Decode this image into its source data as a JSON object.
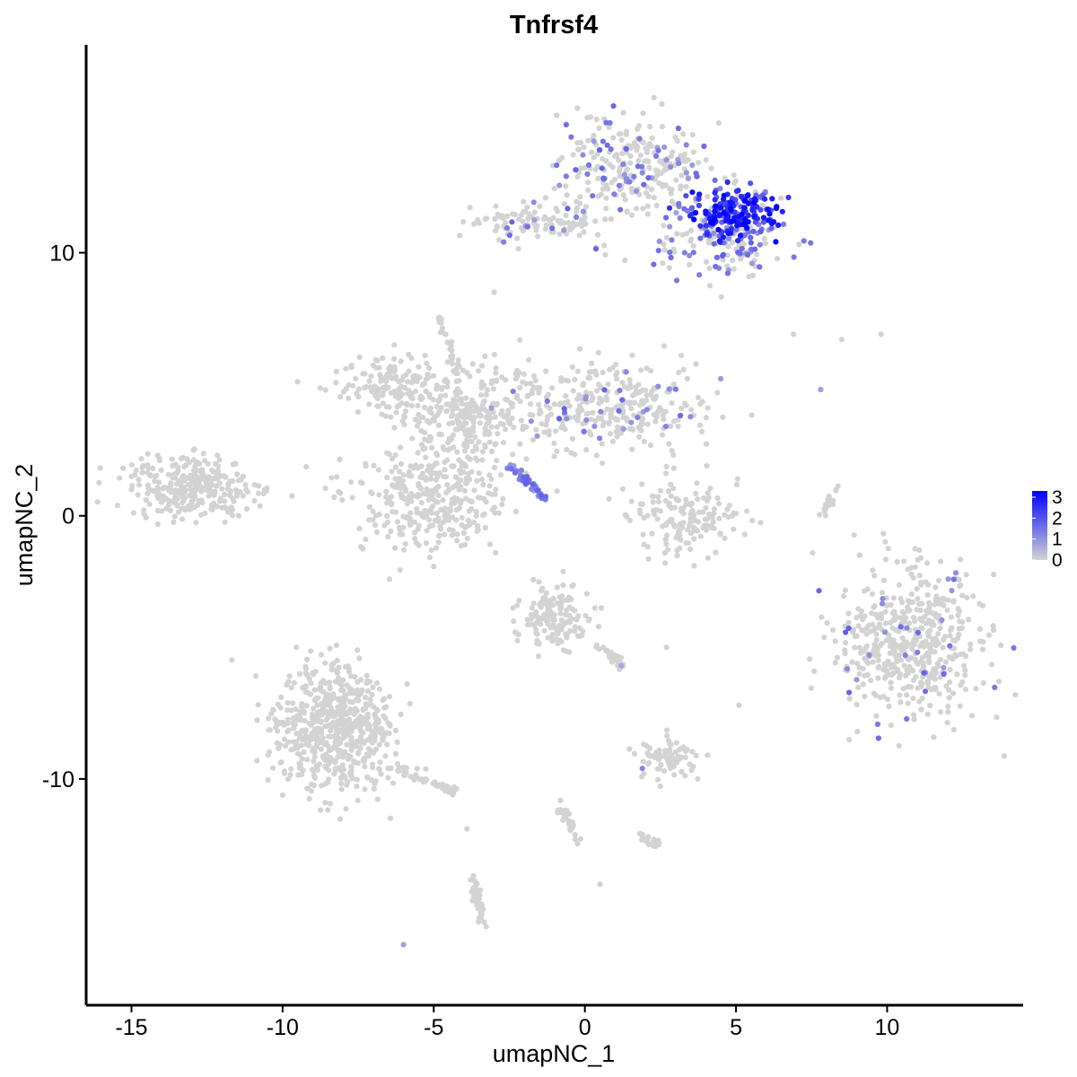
{
  "chart_data": {
    "type": "scatter",
    "title": "Tnfrsf4",
    "xlabel": "umapNC_1",
    "ylabel": "umapNC_2",
    "xlim": [
      -16.5,
      14.5
    ],
    "ylim": [
      -18.6,
      17.9
    ],
    "x_ticks": [
      -15,
      -10,
      -5,
      0,
      5,
      10
    ],
    "x_tick_labels": [
      "-15",
      "-10",
      "-5",
      "0",
      "5",
      "10"
    ],
    "y_ticks": [
      -10,
      0,
      10
    ],
    "y_tick_labels": [
      "-10",
      "0",
      "10"
    ],
    "color_scale": {
      "low": "#d3d3d3",
      "high": "#0000ff",
      "min": 0,
      "max": 3.3,
      "ticks": [
        0,
        1,
        2,
        3
      ],
      "tick_labels": [
        "0",
        "1",
        "2",
        "3"
      ],
      "placement": "right"
    },
    "clusters": [
      {
        "label": "top-upper",
        "cx": 1.6,
        "cy": 13.2,
        "sx": 1.2,
        "sy": 0.9,
        "n": 260,
        "expr": 0.05
      },
      {
        "label": "top-arm",
        "cx": -1.5,
        "cy": 11.2,
        "sx": 1.2,
        "sy": 0.35,
        "n": 110,
        "expr": 0.03
      },
      {
        "label": "top-right",
        "cx": 4.7,
        "cy": 10.6,
        "sx": 1.0,
        "sy": 0.8,
        "n": 180,
        "expr": 0.1
      },
      {
        "label": "top-hot",
        "cx": 4.9,
        "cy": 11.5,
        "sx": 0.7,
        "sy": 0.5,
        "n": 190,
        "expr": 2.4
      },
      {
        "label": "center-left-arm",
        "cx": -6.5,
        "cy": 5.0,
        "sx": 0.8,
        "sy": 0.6,
        "n": 140,
        "expr": 0.0
      },
      {
        "label": "center-hub",
        "cx": -4.0,
        "cy": 3.8,
        "sx": 1.1,
        "sy": 0.9,
        "n": 260,
        "expr": 0.0
      },
      {
        "label": "center-right-arm",
        "cx": 0.8,
        "cy": 4.2,
        "sx": 1.8,
        "sy": 0.9,
        "n": 320,
        "expr": 0.02
      },
      {
        "label": "center-lower",
        "cx": -5.2,
        "cy": 0.6,
        "sx": 1.2,
        "sy": 1.0,
        "n": 320,
        "expr": 0.0
      },
      {
        "label": "far-left",
        "cx": -13.0,
        "cy": 1.1,
        "sx": 1.0,
        "sy": 0.6,
        "n": 300,
        "expr": 0.0
      },
      {
        "label": "arc",
        "cx": 3.3,
        "cy": 0.0,
        "sx": 0.9,
        "sy": 0.7,
        "n": 160,
        "expr": 0.0
      },
      {
        "label": "right",
        "cx": 10.8,
        "cy": -4.9,
        "sx": 1.2,
        "sy": 1.4,
        "n": 520,
        "expr": 0.01
      },
      {
        "label": "mid-lower",
        "cx": -1.0,
        "cy": -3.8,
        "sx": 0.6,
        "sy": 0.6,
        "n": 150,
        "expr": 0.0
      },
      {
        "label": "bottom-left",
        "cx": -8.3,
        "cy": -8.0,
        "sx": 1.0,
        "sy": 1.2,
        "n": 600,
        "expr": 0.0
      },
      {
        "label": "small-bottom",
        "cx": 2.8,
        "cy": -9.2,
        "sx": 0.5,
        "sy": 0.4,
        "n": 80,
        "expr": 0.0
      }
    ],
    "strands": [
      {
        "label": "diag-strand",
        "points": [
          [
            -2.5,
            2.0
          ],
          [
            -1.3,
            0.6
          ]
        ],
        "n": 40,
        "expr": 1.3
      },
      {
        "label": "stem",
        "points": [
          [
            -4.8,
            7.5
          ],
          [
            -4.2,
            5.3
          ]
        ],
        "n": 30,
        "expr": 0.0
      },
      {
        "label": "right-strand",
        "points": [
          [
            7.8,
            0.0
          ],
          [
            8.4,
            1.1
          ]
        ],
        "n": 20,
        "expr": 0.0
      },
      {
        "label": "center-mid-strand",
        "points": [
          [
            0.5,
            -5.0
          ],
          [
            1.2,
            -5.7
          ]
        ],
        "n": 24,
        "expr": 0.0
      },
      {
        "label": "lower-strand",
        "points": [
          [
            -0.8,
            -11.0
          ],
          [
            -0.2,
            -12.5
          ]
        ],
        "n": 30,
        "expr": 0.0
      },
      {
        "label": "bottom-strand",
        "points": [
          [
            -3.7,
            -13.8
          ],
          [
            -3.4,
            -15.5
          ]
        ],
        "n": 40,
        "expr": 0.0
      },
      {
        "label": "tail",
        "points": [
          [
            -6.2,
            -9.6
          ],
          [
            -4.3,
            -10.5
          ]
        ],
        "n": 50,
        "expr": 0.0
      },
      {
        "label": "low-right-strand",
        "points": [
          [
            1.9,
            -12.2
          ],
          [
            2.5,
            -12.6
          ]
        ],
        "n": 20,
        "expr": 0.0
      }
    ],
    "points": [
      {
        "x": 7.8,
        "y": 4.8,
        "expr": 0.8
      },
      {
        "x": 6.9,
        "y": 6.9,
        "expr": 0.0
      },
      {
        "x": 8.5,
        "y": 6.7,
        "expr": 0.0
      },
      {
        "x": 9.8,
        "y": 6.9,
        "expr": 0.0
      },
      {
        "x": -6.0,
        "y": -16.3,
        "expr": 0.8
      },
      {
        "x": 1.9,
        "y": -9.6,
        "expr": 1.2
      },
      {
        "x": 1.2,
        "y": -5.7,
        "expr": 0.7
      },
      {
        "x": 3.3,
        "y": 10.0,
        "expr": 1.3
      },
      {
        "x": -3.0,
        "y": 8.5,
        "expr": 0.0
      },
      {
        "x": 0.5,
        "y": -14.0,
        "expr": 0.0
      },
      {
        "x": -3.9,
        "y": -11.9,
        "expr": 0.0
      },
      {
        "x": 5.1,
        "y": -7.2,
        "expr": 0.0
      },
      {
        "x": 2.7,
        "y": -5.0,
        "expr": 0.0
      }
    ]
  }
}
